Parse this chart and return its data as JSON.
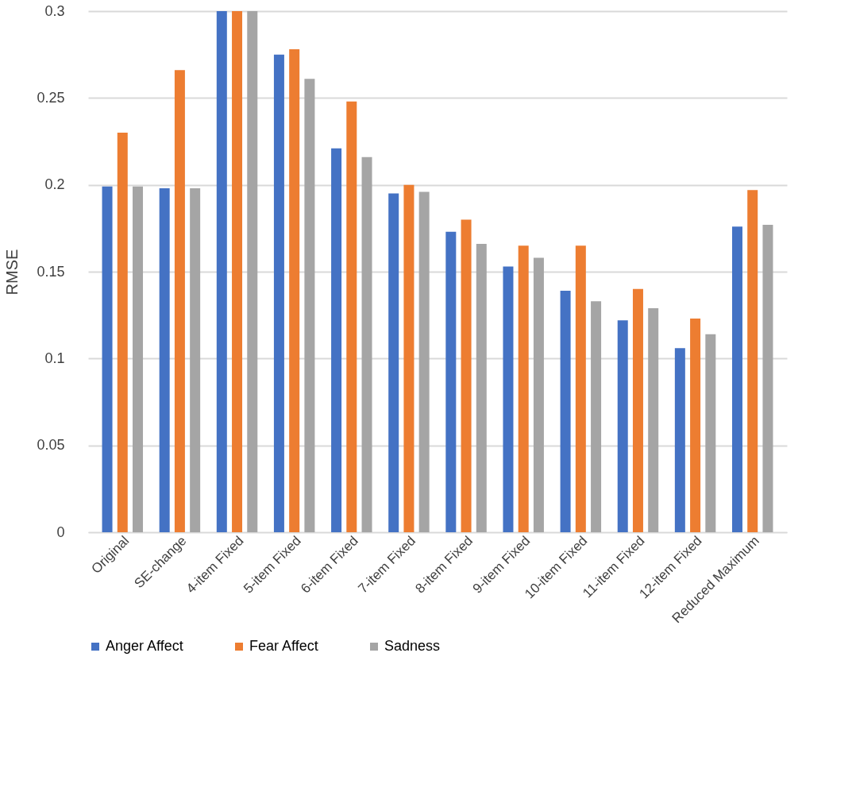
{
  "chart_data": {
    "type": "bar",
    "ylabel": "RMSE",
    "categories": [
      "Original",
      "SE-change",
      "4-item Fixed",
      "5-item Fixed",
      "6-item Fixed",
      "7-item Fixed",
      "8-item Fixed",
      "9-item Fixed",
      "10-item Fixed",
      "11-item Fixed",
      "12-item Fixed",
      "Reduced Maximum"
    ],
    "series": [
      {
        "name": "Anger Affect",
        "color": "#4472c4",
        "values": [
          0.199,
          0.198,
          0.3,
          0.275,
          0.221,
          0.195,
          0.173,
          0.153,
          0.139,
          0.122,
          0.106,
          0.176
        ]
      },
      {
        "name": "Fear Affect",
        "color": "#ed7d31",
        "values": [
          0.23,
          0.266,
          0.3,
          0.278,
          0.248,
          0.2,
          0.18,
          0.165,
          0.165,
          0.14,
          0.123,
          0.197
        ]
      },
      {
        "name": "Sadness",
        "color": "#a5a5a5",
        "values": [
          0.199,
          0.198,
          0.3,
          0.261,
          0.216,
          0.196,
          0.166,
          0.158,
          0.133,
          0.129,
          0.114,
          0.177
        ]
      }
    ],
    "ylim": [
      0,
      0.3
    ],
    "yticks": [
      0,
      0.05,
      0.1,
      0.15,
      0.2,
      0.25,
      0.3
    ],
    "grid": "y",
    "legend": "bottom"
  }
}
